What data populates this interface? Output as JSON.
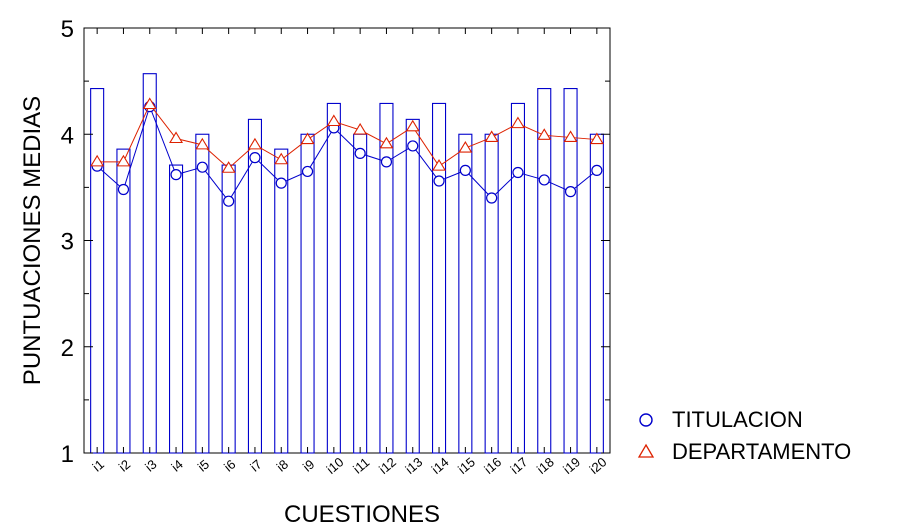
{
  "chart_data": {
    "type": "bar",
    "xlabel": "CUESTIONES",
    "ylabel": "PUNTUACIONES MEDIAS",
    "ylim": [
      1,
      5
    ],
    "yticks": [
      "1",
      "2",
      "3",
      "4",
      "5"
    ],
    "categories": [
      "i1",
      "i2",
      "i3",
      "i4",
      "i5",
      "i6",
      "i7",
      "i8",
      "i9",
      "i10",
      "i11",
      "i12",
      "i13",
      "i14",
      "i15",
      "i16",
      "i17",
      "i18",
      "i19",
      "i20"
    ],
    "bars": [
      4.43,
      3.86,
      4.57,
      3.71,
      4.0,
      3.71,
      4.14,
      3.86,
      4.0,
      4.29,
      4.0,
      4.29,
      4.14,
      4.29,
      4.0,
      4.0,
      4.29,
      4.43,
      4.43,
      4.0
    ],
    "series": [
      {
        "name": "TITULACION",
        "marker": "circle",
        "color": "#0000cc",
        "values": [
          3.7,
          3.48,
          4.26,
          3.62,
          3.69,
          3.37,
          3.78,
          3.54,
          3.65,
          4.06,
          3.82,
          3.74,
          3.89,
          3.56,
          3.66,
          3.4,
          3.64,
          3.57,
          3.46,
          3.66
        ]
      },
      {
        "name": "DEPARTAMENTO",
        "marker": "triangle",
        "color": "#dd2200",
        "values": [
          3.74,
          3.74,
          4.28,
          3.96,
          3.9,
          3.68,
          3.9,
          3.76,
          3.95,
          4.12,
          4.04,
          3.91,
          4.07,
          3.7,
          3.87,
          3.97,
          4.1,
          3.99,
          3.97,
          3.95
        ]
      }
    ],
    "bar_color": "#0000cc",
    "legend": "right-bottom",
    "grid": false
  }
}
